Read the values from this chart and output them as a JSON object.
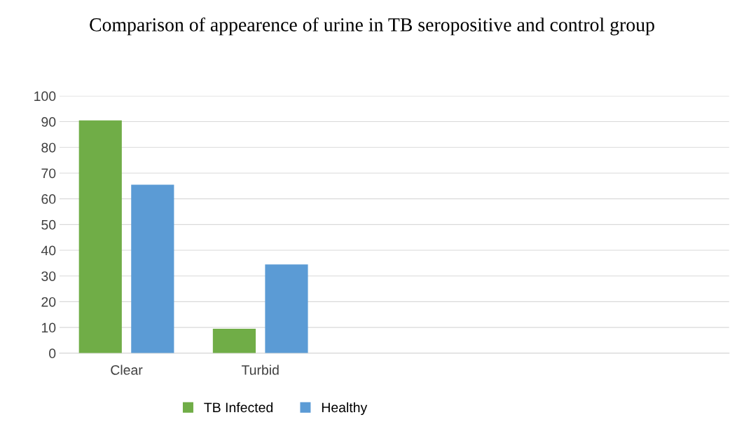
{
  "chart_data": {
    "type": "bar",
    "title": "Comparison of appearence of urine in TB seropositive and control group",
    "categories": [
      "Clear",
      "Turbid",
      null,
      null,
      null
    ],
    "series": [
      {
        "name": "TB Infected",
        "color": "#70ad47",
        "values": [
          90.5,
          9.5,
          null,
          null,
          null
        ]
      },
      {
        "name": "Healthy",
        "color": "#5b9bd5",
        "values": [
          65.5,
          34.5,
          null,
          null,
          null
        ]
      }
    ],
    "ylim": [
      0,
      100
    ],
    "yticks": [
      0,
      10,
      20,
      30,
      40,
      50,
      60,
      70,
      80,
      90,
      100
    ],
    "grid": "y",
    "legend": "bottom"
  }
}
